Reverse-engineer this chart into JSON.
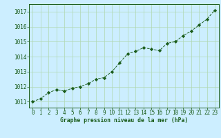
{
  "x": [
    0,
    1,
    2,
    3,
    4,
    5,
    6,
    7,
    8,
    9,
    10,
    11,
    12,
    13,
    14,
    15,
    16,
    17,
    18,
    19,
    20,
    21,
    22,
    23
  ],
  "y": [
    1011.0,
    1011.2,
    1011.6,
    1011.8,
    1011.7,
    1011.9,
    1012.0,
    1012.2,
    1012.5,
    1012.6,
    1013.0,
    1013.6,
    1014.2,
    1014.35,
    1014.6,
    1014.5,
    1014.4,
    1014.9,
    1015.0,
    1015.4,
    1015.7,
    1016.1,
    1016.5,
    1017.1
  ],
  "line_color": "#1a5c1a",
  "marker": "D",
  "marker_size": 2.2,
  "bg_color": "#cceeff",
  "grid_color": "#b0d8b0",
  "xlabel": "Graphe pression niveau de la mer (hPa)",
  "xlabel_color": "#1a5c1a",
  "tick_color": "#1a5c1a",
  "spine_color": "#1a5c1a",
  "ylim": [
    1010.6,
    1017.5
  ],
  "yticks": [
    1011,
    1012,
    1013,
    1014,
    1015,
    1016,
    1017
  ],
  "xlim": [
    -0.5,
    23.5
  ],
  "xticks": [
    0,
    1,
    2,
    3,
    4,
    5,
    6,
    7,
    8,
    9,
    10,
    11,
    12,
    13,
    14,
    15,
    16,
    17,
    18,
    19,
    20,
    21,
    22,
    23
  ]
}
